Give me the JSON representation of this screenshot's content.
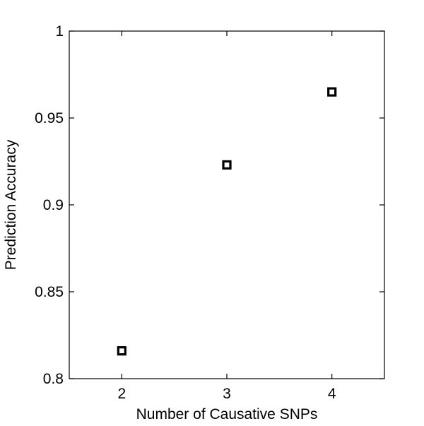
{
  "chart_data": {
    "type": "scatter",
    "title": "",
    "xlabel": "Number of Causative SNPs",
    "ylabel": "Prediction Accuracy",
    "xlim": [
      1.5,
      4.5
    ],
    "ylim": [
      0.8,
      1.0
    ],
    "x_ticks": [
      2,
      3,
      4
    ],
    "x_tick_labels": [
      "2",
      "3",
      "4"
    ],
    "y_ticks": [
      0.8,
      0.85,
      0.9,
      0.95,
      1.0
    ],
    "y_tick_labels": [
      "0.8",
      "0.85",
      "0.9",
      "0.95",
      "1"
    ],
    "grid": false,
    "marker": "square",
    "marker_color": "#000000",
    "points": [
      {
        "x": 2,
        "y": 0.816
      },
      {
        "x": 3,
        "y": 0.923
      },
      {
        "x": 4,
        "y": 0.965
      }
    ]
  }
}
